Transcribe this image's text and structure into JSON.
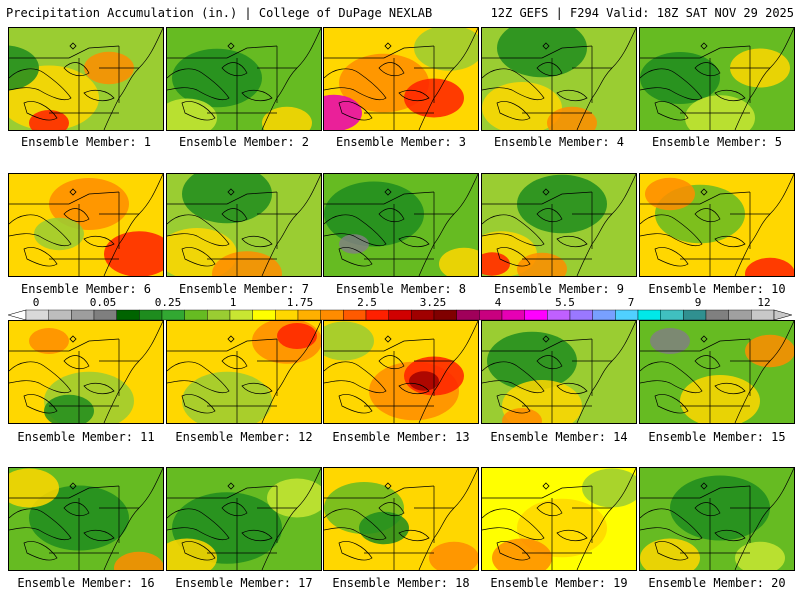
{
  "header": {
    "title_left": "Precipitation Accumulation (in.) | College of DuPage NEXLAB",
    "title_right": "12Z GEFS | F294 Valid: 18Z SAT NOV 29 2025"
  },
  "colorbar": {
    "tick_labels": [
      "0",
      "0.05",
      "0.25",
      "1",
      "1.75",
      "2.5",
      "3.25",
      "4",
      "5.5",
      "7",
      "9",
      "12"
    ],
    "colors": [
      "#d9d9d9",
      "#bdbdbd",
      "#9e9e9e",
      "#7f7f7f",
      "#006400",
      "#1e8c1e",
      "#32a832",
      "#66bb22",
      "#9acd32",
      "#c8e632",
      "#ffff00",
      "#ffd700",
      "#ffb000",
      "#ff8c00",
      "#ff5a00",
      "#ff2000",
      "#d00000",
      "#a00000",
      "#800000",
      "#a0005a",
      "#c8007f",
      "#e600b4",
      "#ff00ff",
      "#c060ff",
      "#9a78ff",
      "#78a0ff",
      "#50d0ff",
      "#00e8e8",
      "#40c0c0",
      "#309090",
      "#808080",
      "#a0a0a0",
      "#c8c8c8"
    ]
  },
  "members": [
    {
      "label": "Ensemble Member: 1",
      "base": "#9acd32",
      "blobs": [
        [
          "#ffd700",
          40,
          70,
          50
        ],
        [
          "#1e8c1e",
          -5,
          40,
          35
        ],
        [
          "#ff8c00",
          100,
          40,
          25
        ],
        [
          "#ff2000",
          40,
          95,
          20
        ]
      ]
    },
    {
      "label": "Ensemble Member: 2",
      "base": "#66bb22",
      "blobs": [
        [
          "#1e8c1e",
          50,
          50,
          45
        ],
        [
          "#c8e632",
          20,
          90,
          30
        ],
        [
          "#ffd700",
          120,
          95,
          25
        ]
      ]
    },
    {
      "label": "Ensemble Member: 3",
      "base": "#ffd700",
      "blobs": [
        [
          "#ff8c00",
          60,
          55,
          45
        ],
        [
          "#e600b4",
          10,
          85,
          28
        ],
        [
          "#ff2000",
          110,
          70,
          30
        ],
        [
          "#9acd32",
          125,
          20,
          35
        ]
      ]
    },
    {
      "label": "Ensemble Member: 4",
      "base": "#9acd32",
      "blobs": [
        [
          "#1e8c1e",
          60,
          20,
          45
        ],
        [
          "#ffd700",
          40,
          80,
          40
        ],
        [
          "#ff8c00",
          90,
          95,
          25
        ]
      ]
    },
    {
      "label": "Ensemble Member: 5",
      "base": "#66bb22",
      "blobs": [
        [
          "#1e8c1e",
          40,
          50,
          40
        ],
        [
          "#ffd700",
          120,
          40,
          30
        ],
        [
          "#c8e632",
          80,
          90,
          35
        ]
      ]
    },
    {
      "label": "Ensemble Member: 6",
      "base": "#ffd700",
      "blobs": [
        [
          "#ff8c00",
          80,
          30,
          40
        ],
        [
          "#ff2000",
          130,
          80,
          35
        ],
        [
          "#9acd32",
          50,
          60,
          25
        ]
      ]
    },
    {
      "label": "Ensemble Member: 7",
      "base": "#9acd32",
      "blobs": [
        [
          "#1e8c1e",
          60,
          20,
          45
        ],
        [
          "#ffd700",
          30,
          80,
          40
        ],
        [
          "#ff8c00",
          80,
          100,
          35
        ]
      ]
    },
    {
      "label": "Ensemble Member: 8",
      "base": "#66bb22",
      "blobs": [
        [
          "#1e8c1e",
          50,
          40,
          50
        ],
        [
          "#808080",
          30,
          70,
          15
        ],
        [
          "#ffd700",
          140,
          90,
          25
        ]
      ]
    },
    {
      "label": "Ensemble Member: 9",
      "base": "#9acd32",
      "blobs": [
        [
          "#1e8c1e",
          80,
          30,
          45
        ],
        [
          "#ffd700",
          20,
          80,
          35
        ],
        [
          "#ff2000",
          10,
          90,
          18
        ],
        [
          "#ff8c00",
          60,
          95,
          25
        ]
      ]
    },
    {
      "label": "Ensemble Member: 10",
      "base": "#ffd700",
      "blobs": [
        [
          "#66bb22",
          60,
          40,
          45
        ],
        [
          "#ff8c00",
          30,
          20,
          25
        ],
        [
          "#ff2000",
          130,
          100,
          25
        ]
      ]
    },
    {
      "label": "Ensemble Member: 11",
      "base": "#ffd700",
      "blobs": [
        [
          "#9acd32",
          80,
          80,
          45
        ],
        [
          "#1e8c1e",
          60,
          90,
          25
        ],
        [
          "#ff8c00",
          40,
          20,
          20
        ]
      ]
    },
    {
      "label": "Ensemble Member: 12",
      "base": "#ffd700",
      "blobs": [
        [
          "#9acd32",
          60,
          80,
          45
        ],
        [
          "#ff8c00",
          120,
          20,
          35
        ],
        [
          "#ff2000",
          130,
          15,
          20
        ]
      ]
    },
    {
      "label": "Ensemble Member: 13",
      "base": "#ffd700",
      "blobs": [
        [
          "#ff8c00",
          90,
          70,
          45
        ],
        [
          "#ff2000",
          110,
          55,
          30
        ],
        [
          "#a00000",
          100,
          60,
          15
        ],
        [
          "#9acd32",
          20,
          20,
          30
        ]
      ]
    },
    {
      "label": "Ensemble Member: 14",
      "base": "#9acd32",
      "blobs": [
        [
          "#1e8c1e",
          50,
          40,
          45
        ],
        [
          "#ffd700",
          60,
          85,
          40
        ],
        [
          "#ff8c00",
          40,
          100,
          20
        ]
      ]
    },
    {
      "label": "Ensemble Member: 15",
      "base": "#66bb22",
      "blobs": [
        [
          "#808080",
          30,
          20,
          20
        ],
        [
          "#ffd700",
          80,
          80,
          40
        ],
        [
          "#ff8c00",
          130,
          30,
          25
        ]
      ]
    },
    {
      "label": "Ensemble Member: 16",
      "base": "#66bb22",
      "blobs": [
        [
          "#1e8c1e",
          70,
          50,
          50
        ],
        [
          "#ffd700",
          20,
          20,
          30
        ],
        [
          "#ff8c00",
          130,
          100,
          25
        ]
      ]
    },
    {
      "label": "Ensemble Member: 17",
      "base": "#66bb22",
      "blobs": [
        [
          "#1e8c1e",
          60,
          60,
          55
        ],
        [
          "#ffd700",
          20,
          90,
          30
        ],
        [
          "#c8e632",
          130,
          30,
          30
        ]
      ]
    },
    {
      "label": "Ensemble Member: 18",
      "base": "#ffd700",
      "blobs": [
        [
          "#66bb22",
          40,
          40,
          40
        ],
        [
          "#1e8c1e",
          60,
          60,
          25
        ],
        [
          "#ff8c00",
          130,
          90,
          25
        ]
      ]
    },
    {
      "label": "Ensemble Member: 19",
      "base": "#ffff00",
      "blobs": [
        [
          "#ffd700",
          80,
          60,
          45
        ],
        [
          "#ff8c00",
          40,
          90,
          30
        ],
        [
          "#9acd32",
          130,
          20,
          30
        ]
      ]
    },
    {
      "label": "Ensemble Member: 20",
      "base": "#66bb22",
      "blobs": [
        [
          "#1e8c1e",
          80,
          40,
          50
        ],
        [
          "#ffd700",
          30,
          90,
          30
        ],
        [
          "#c8e632",
          120,
          90,
          25
        ]
      ]
    }
  ]
}
